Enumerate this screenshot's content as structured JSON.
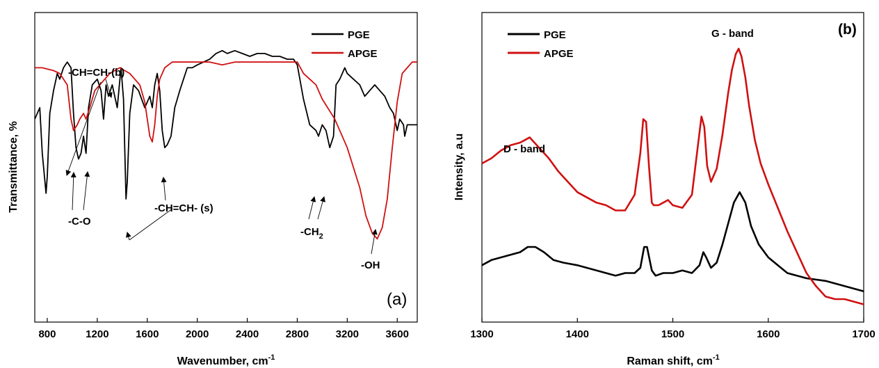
{
  "chart_data": [
    {
      "type": "line",
      "panel_label": "(a)",
      "xlabel": "Wavenumber, cm",
      "xlabel_sup": "-1",
      "ylabel": "Transmittance, %",
      "xlim": [
        700,
        3760
      ],
      "ylim": [
        0,
        100
      ],
      "xticks": [
        800,
        1200,
        1600,
        2000,
        2400,
        2800,
        3200,
        3600
      ],
      "legend": {
        "position": "top-right"
      },
      "series": [
        {
          "name": "PGE",
          "color": "#000000",
          "x": [
            700,
            740,
            760,
            790,
            800,
            820,
            850,
            880,
            900,
            930,
            960,
            990,
            1010,
            1030,
            1050,
            1070,
            1090,
            1110,
            1130,
            1160,
            1200,
            1230,
            1250,
            1270,
            1290,
            1320,
            1360,
            1390,
            1410,
            1430,
            1440,
            1460,
            1490,
            1530,
            1580,
            1620,
            1640,
            1660,
            1680,
            1700,
            1720,
            1740,
            1760,
            1790,
            1820,
            1860,
            1890,
            1920,
            1960,
            2000,
            2050,
            2100,
            2150,
            2200,
            2240,
            2300,
            2360,
            2420,
            2480,
            2540,
            2600,
            2660,
            2720,
            2770,
            2800,
            2850,
            2900,
            2950,
            2970,
            3000,
            3030,
            3060,
            3090,
            3110,
            3140,
            3180,
            3200,
            3250,
            3300,
            3340,
            3380,
            3420,
            3460,
            3500,
            3540,
            3570,
            3600,
            3620,
            3650,
            3660,
            3680,
            3700,
            3730,
            3760
          ],
          "y": [
            68,
            72,
            56,
            42,
            48,
            70,
            78,
            84,
            82,
            86,
            88,
            86,
            70,
            58,
            54,
            56,
            62,
            56,
            72,
            80,
            82,
            78,
            68,
            80,
            76,
            80,
            72,
            86,
            75,
            40,
            46,
            70,
            80,
            78,
            72,
            76,
            72,
            80,
            84,
            78,
            64,
            58,
            59,
            62,
            72,
            78,
            82,
            86,
            86,
            87,
            88,
            89,
            91,
            92,
            91,
            92,
            91,
            90,
            91,
            91,
            90,
            90,
            89,
            89,
            87,
            75,
            66,
            64,
            62,
            66,
            64,
            58,
            62,
            80,
            82,
            86,
            84,
            82,
            80,
            76,
            78,
            80,
            78,
            76,
            72,
            70,
            64,
            68,
            66,
            62,
            66,
            66,
            66,
            66
          ]
        },
        {
          "name": "APGE",
          "color": "#d01010",
          "x": [
            700,
            760,
            850,
            900,
            960,
            990,
            1010,
            1040,
            1060,
            1090,
            1110,
            1140,
            1180,
            1220,
            1260,
            1300,
            1340,
            1380,
            1420,
            1460,
            1500,
            1540,
            1580,
            1600,
            1620,
            1640,
            1660,
            1680,
            1700,
            1740,
            1800,
            1900,
            2000,
            2100,
            2200,
            2300,
            2400,
            2500,
            2600,
            2700,
            2800,
            2850,
            2900,
            2950,
            3000,
            3100,
            3200,
            3300,
            3350,
            3400,
            3440,
            3480,
            3520,
            3560,
            3600,
            3640,
            3680,
            3720,
            3760
          ],
          "y": [
            86,
            86,
            85,
            84,
            80,
            68,
            64,
            66,
            68,
            70,
            68,
            72,
            78,
            80,
            82,
            84,
            85,
            86,
            85,
            84,
            82,
            80,
            74,
            68,
            62,
            60,
            66,
            76,
            82,
            86,
            88,
            88,
            88,
            88,
            87,
            88,
            88,
            88,
            88,
            88,
            88,
            84,
            82,
            80,
            75,
            68,
            58,
            44,
            34,
            28,
            26,
            30,
            40,
            58,
            74,
            84,
            86,
            88,
            88
          ]
        }
      ],
      "annotations": [
        {
          "text": "-CH=CH-(b)"
        },
        {
          "text": "-C-O"
        },
        {
          "text": "-CH=CH- (s)"
        },
        {
          "text": "-CH",
          "sub": "2"
        },
        {
          "text": "-OH"
        }
      ]
    },
    {
      "type": "line",
      "panel_label": "(b)",
      "xlabel": "Raman shift, cm",
      "xlabel_sup": "-1",
      "ylabel": "Intensity, a.u",
      "xlim": [
        1300,
        1700
      ],
      "ylim": [
        0,
        100
      ],
      "xticks": [
        1300,
        1400,
        1500,
        1600,
        1700
      ],
      "legend": {
        "position": "top-left"
      },
      "series": [
        {
          "name": "PGE",
          "color": "#000000",
          "x": [
            1300,
            1310,
            1320,
            1330,
            1340,
            1348,
            1356,
            1365,
            1375,
            1385,
            1400,
            1420,
            1440,
            1450,
            1460,
            1466,
            1470,
            1473,
            1478,
            1482,
            1490,
            1500,
            1510,
            1520,
            1528,
            1532,
            1535,
            1540,
            1546,
            1552,
            1558,
            1564,
            1570,
            1576,
            1582,
            1590,
            1600,
            1610,
            1620,
            1640,
            1660,
            1680,
            1700
          ],
          "y": [
            17,
            19,
            20,
            21,
            22,
            24,
            24,
            22,
            19,
            18,
            17,
            15,
            13,
            14,
            14,
            16,
            24,
            24,
            15,
            13,
            14,
            14,
            15,
            14,
            17,
            22,
            20,
            16,
            18,
            25,
            33,
            41,
            45,
            41,
            32,
            25,
            20,
            17,
            14,
            12,
            11,
            9,
            7
          ]
        },
        {
          "name": "APGE",
          "color": "#d01010",
          "x": [
            1300,
            1310,
            1320,
            1330,
            1340,
            1345,
            1350,
            1355,
            1360,
            1370,
            1380,
            1390,
            1400,
            1410,
            1420,
            1430,
            1440,
            1450,
            1460,
            1466,
            1469,
            1472,
            1475,
            1478,
            1480,
            1485,
            1490,
            1495,
            1500,
            1510,
            1520,
            1526,
            1530,
            1533,
            1536,
            1540,
            1546,
            1552,
            1558,
            1562,
            1566,
            1569,
            1572,
            1576,
            1580,
            1586,
            1592,
            1600,
            1610,
            1620,
            1630,
            1640,
            1650,
            1660,
            1670,
            1680,
            1690,
            1700
          ],
          "y": [
            56,
            58,
            61,
            63,
            64,
            65,
            66,
            64,
            62,
            58,
            53,
            49,
            45,
            43,
            41,
            40,
            38,
            38,
            44,
            60,
            73,
            72,
            55,
            41,
            40,
            40,
            41,
            42,
            40,
            39,
            44,
            62,
            74,
            70,
            55,
            49,
            54,
            67,
            83,
            92,
            98,
            100,
            97,
            89,
            78,
            65,
            56,
            48,
            39,
            30,
            22,
            14,
            9,
            5,
            4,
            4,
            3,
            2
          ]
        }
      ],
      "annotations": [
        {
          "text": "D - band"
        },
        {
          "text": "G - band"
        }
      ]
    }
  ]
}
